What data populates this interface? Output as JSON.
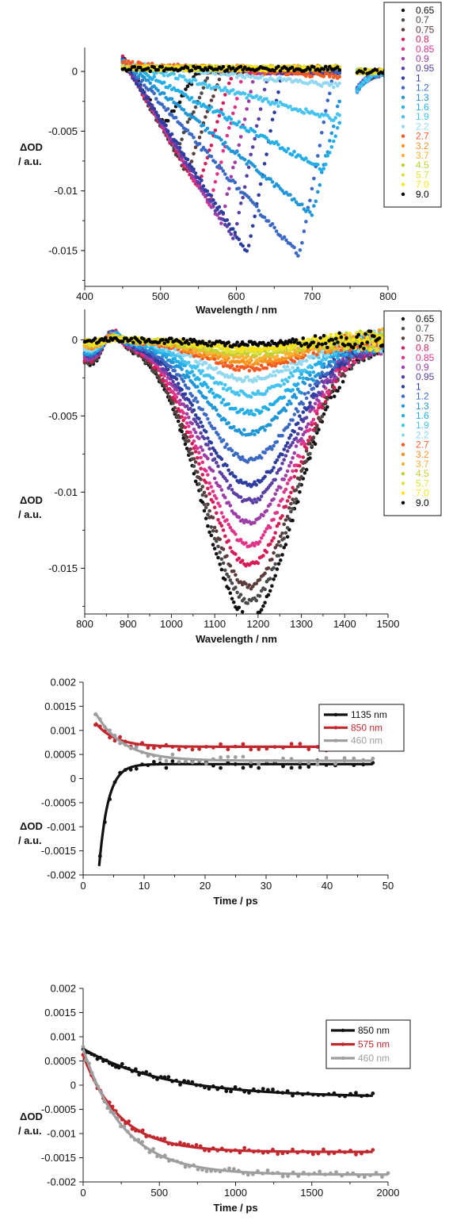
{
  "chart_data": [
    {
      "type": "scatter",
      "xlabel": "Wavelength / nm",
      "ylabel_line1": "ΔOD",
      "ylabel_line2": "/ a.u.",
      "xlim": [
        400,
        800
      ],
      "ylim": [
        -0.018,
        0.002
      ],
      "xticks": [
        "400",
        "500",
        "600",
        "700",
        "800"
      ],
      "yticks": [
        "0",
        "-0.005",
        "-0.01",
        "-0.015"
      ],
      "gaps": [
        [
          737,
          757
        ]
      ],
      "series": [
        {
          "name": "0.65",
          "color": "#111111",
          "dip_x": 505,
          "dip_y": -0.0045
        },
        {
          "name": "0.7",
          "color": "#4a4a4a",
          "dip_x": 520,
          "dip_y": -0.0068
        },
        {
          "name": "0.75",
          "color": "#5c3b3b",
          "dip_x": 535,
          "dip_y": -0.0085
        },
        {
          "name": "0.8",
          "color": "#d41d57",
          "dip_x": 550,
          "dip_y": -0.0098
        },
        {
          "name": "0.85",
          "color": "#e0338a",
          "dip_x": 565,
          "dip_y": -0.0112
        },
        {
          "name": "0.9",
          "color": "#9d3ea7",
          "dip_x": 580,
          "dip_y": -0.0126
        },
        {
          "name": "0.95",
          "color": "#5b3fa5",
          "dip_x": 597,
          "dip_y": -0.014
        },
        {
          "name": "1",
          "color": "#2d3d9e",
          "dip_x": 615,
          "dip_y": -0.0152
        },
        {
          "name": "1.2",
          "color": "#3a68c2",
          "dip_x": 683,
          "dip_y": -0.0154
        },
        {
          "name": "1.3",
          "color": "#2196d7",
          "dip_x": 700,
          "dip_y": -0.012
        },
        {
          "name": "1.6",
          "color": "#24aee6",
          "dip_x": 715,
          "dip_y": -0.0082
        },
        {
          "name": "1.9",
          "color": "#46c3ee",
          "dip_x": 730,
          "dip_y": -0.004
        },
        {
          "name": "2.2",
          "color": "#92d8f0",
          "dip_x": 735,
          "dip_y": -0.0012
        },
        {
          "name": "2.7",
          "color": "#f25a22",
          "dip_x": 740,
          "dip_y": -0.0004
        },
        {
          "name": "3.2",
          "color": "#f7931e",
          "dip_x": 740,
          "dip_y": -0.0002
        },
        {
          "name": "3.7",
          "color": "#f9b233",
          "dip_x": 740,
          "dip_y": -0.0001
        },
        {
          "name": "4.5",
          "color": "#c3cf2e",
          "dip_x": 740,
          "dip_y": -0.0001
        },
        {
          "name": "5.7",
          "color": "#dee13b",
          "dip_x": 740,
          "dip_y": 0.0
        },
        {
          "name": "7.0",
          "color": "#fbe315",
          "dip_x": 740,
          "dip_y": 0.0
        },
        {
          "name": "9.0",
          "color": "#000000",
          "dip_x": 740,
          "dip_y": 0.0
        }
      ]
    },
    {
      "type": "scatter",
      "xlabel": "Wavelength / nm",
      "ylabel_line1": "ΔOD",
      "ylabel_line2": "/ a.u.",
      "xlim": [
        800,
        1500
      ],
      "ylim": [
        -0.018,
        0.002
      ],
      "xticks": [
        "800",
        "900",
        "1000",
        "1100",
        "1200",
        "1300",
        "1400",
        "1500"
      ],
      "yticks": [
        "0",
        "-0.005",
        "-0.01",
        "-0.015"
      ],
      "series": [
        {
          "name": "0.65",
          "color": "#111111",
          "amp": -0.0182
        },
        {
          "name": "0.7",
          "color": "#4a4a4a",
          "amp": -0.0172
        },
        {
          "name": "0.75",
          "color": "#5c3b3b",
          "amp": -0.0162
        },
        {
          "name": "0.8",
          "color": "#d41d57",
          "amp": -0.0148
        },
        {
          "name": "0.85",
          "color": "#e0338a",
          "amp": -0.0135
        },
        {
          "name": "0.9",
          "color": "#9d3ea7",
          "amp": -0.012
        },
        {
          "name": "0.95",
          "color": "#5b3fa5",
          "amp": -0.0106
        },
        {
          "name": "1",
          "color": "#2d3d9e",
          "amp": -0.0095
        },
        {
          "name": "1.2",
          "color": "#3a68c2",
          "amp": -0.0079
        },
        {
          "name": "1.3",
          "color": "#2196d7",
          "amp": -0.0061
        },
        {
          "name": "1.6",
          "color": "#24aee6",
          "amp": -0.0048
        },
        {
          "name": "1.9",
          "color": "#46c3ee",
          "amp": -0.0036
        },
        {
          "name": "2.2",
          "color": "#92d8f0",
          "amp": -0.0026
        },
        {
          "name": "2.7",
          "color": "#f25a22",
          "amp": -0.0019
        },
        {
          "name": "3.2",
          "color": "#f7931e",
          "amp": -0.0015
        },
        {
          "name": "3.7",
          "color": "#f9b233",
          "amp": -0.0012
        },
        {
          "name": "4.5",
          "color": "#c3cf2e",
          "amp": -0.0009
        },
        {
          "name": "5.7",
          "color": "#dee13b",
          "amp": -0.0007
        },
        {
          "name": "7.0",
          "color": "#fbe315",
          "amp": -0.0005
        },
        {
          "name": "9.0",
          "color": "#000000",
          "amp": -0.0003
        }
      ]
    },
    {
      "type": "line",
      "xlabel": "Time / ps",
      "ylabel_line1": "ΔOD",
      "ylabel_line2": "/ a.u.",
      "xlim": [
        0,
        50
      ],
      "ylim": [
        -0.002,
        0.002
      ],
      "xticks": [
        "0",
        "10",
        "20",
        "30",
        "40",
        "50"
      ],
      "yticks": [
        "0.002",
        "0.0015",
        "0.001",
        "0.0005",
        "0",
        "-0.0005",
        "-0.001",
        "-0.0015",
        "-0.002"
      ],
      "series": [
        {
          "name": "1135 nm",
          "color": "#111111",
          "x0": 2,
          "offset": 0.0003,
          "amp": -0.0032,
          "tau": 1.5,
          "x_end": 47.5
        },
        {
          "name": "850 nm",
          "color": "#c0282e",
          "x0": 2,
          "offset": 0.00066,
          "amp": 0.0005,
          "tau": 3.2,
          "x_end": 47.5
        },
        {
          "name": "460 nm",
          "color": "#9e9e9e",
          "x0": 2,
          "offset": 0.00037,
          "amp": 0.001,
          "tau": 4.5,
          "x_end": 47.5
        }
      ]
    },
    {
      "type": "line",
      "xlabel": "Time / ps",
      "ylabel_line1": "ΔOD",
      "ylabel_line2": "/ a.u.",
      "xlim": [
        0,
        2000
      ],
      "ylim": [
        -0.002,
        0.002
      ],
      "xticks": [
        "0",
        "500",
        "1000",
        "1500",
        "2000"
      ],
      "yticks": [
        "0.002",
        "0.0015",
        "0.001",
        "0.0005",
        "0",
        "-0.0005",
        "-0.001",
        "-0.0015",
        "-0.002"
      ],
      "series": [
        {
          "name": "850 nm",
          "color": "#111111",
          "x0": 0,
          "offset": -0.00025,
          "amp": 0.001,
          "tau": 550,
          "x_end": 1900
        },
        {
          "name": "575 nm",
          "color": "#c0282e",
          "x0": 0,
          "offset": -0.00138,
          "amp": 0.002,
          "tau": 240,
          "x_end": 1900
        },
        {
          "name": "460 nm",
          "color": "#9e9e9e",
          "x0": 0,
          "offset": -0.00185,
          "amp": 0.0026,
          "tau": 270,
          "x_end": 2000
        }
      ]
    }
  ]
}
